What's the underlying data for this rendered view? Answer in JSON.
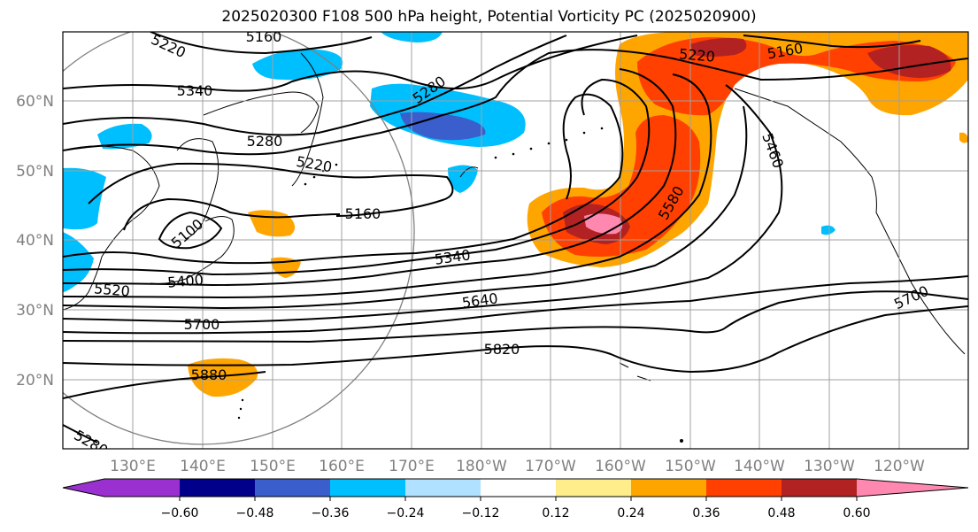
{
  "title": "2025020300 F108 500 hPa height, Potential Vorticity PC (2025020900)",
  "lat_labels": [
    "60°N",
    "50°N",
    "40°N",
    "30°N",
    "20°N"
  ],
  "lon_labels": [
    "130°E",
    "140°E",
    "150°E",
    "160°E",
    "170°E",
    "180°W",
    "170°W",
    "160°W",
    "150°W",
    "140°W",
    "130°W",
    "120°W"
  ],
  "contour_labels": [
    "5160",
    "5220",
    "5340",
    "5280",
    "5280",
    "5220",
    "5160",
    "5100",
    "5340",
    "5400",
    "5520",
    "5640",
    "5700",
    "5820",
    "5880",
    "5580",
    "5460",
    "5220",
    "5160",
    "5700",
    "5280"
  ],
  "colorbar": {
    "ticks": [
      "−0.60",
      "−0.48",
      "−0.36",
      "−0.24",
      "−0.12",
      "0.12",
      "0.24",
      "0.36",
      "0.48",
      "0.60"
    ],
    "colors": [
      "#9b30d0",
      "#00008b",
      "#3a5fcd",
      "#00bfff",
      "#b0e2ff",
      "#ffffff",
      "#ffec8b",
      "#ffa500",
      "#ff4000",
      "#b22222",
      "#ff88b0"
    ]
  }
}
